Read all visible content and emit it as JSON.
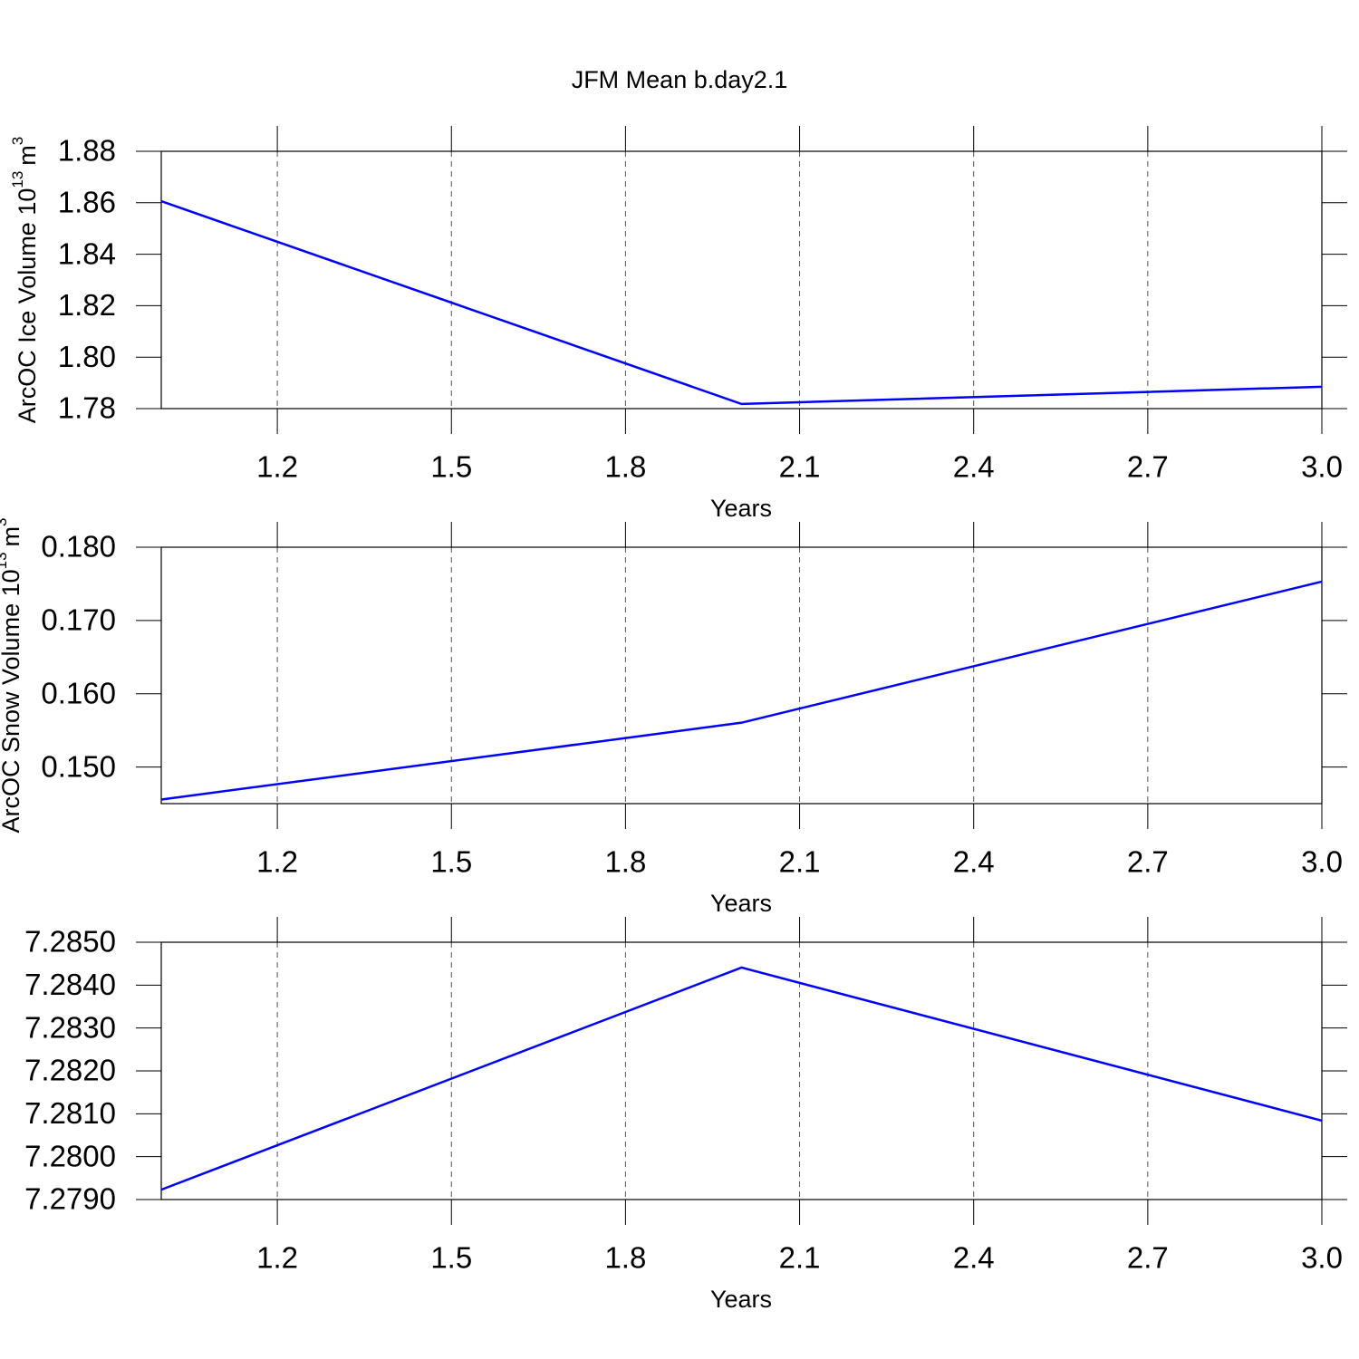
{
  "chart_data": [
    {
      "type": "line",
      "title": "JFM Mean b.day2.1",
      "xlabel": "Years",
      "ylabel": "ArcOC Ice Volume 10",
      "ylabel_exp": "13",
      "ylabel_unit": "m",
      "ylabel_unit_exp": "3",
      "x": [
        1,
        2,
        3
      ],
      "values": [
        1.8606,
        1.7818,
        1.7885
      ],
      "color": "#0000ff",
      "xlim": [
        1,
        3
      ],
      "xticks": [
        1.2,
        1.5,
        1.8,
        2.1,
        2.4,
        2.7,
        {
          "value": 3.0,
          "label": "3.0"
        }
      ],
      "ylim": [
        1.78,
        1.88
      ],
      "yticks": [
        1.78,
        {
          "value": 1.8,
          "label": "1.80"
        },
        1.82,
        1.84,
        1.86,
        1.88
      ],
      "grid": true
    },
    {
      "type": "line",
      "xlabel": "Years",
      "ylabel": "ArcOC Snow Volume 10",
      "ylabel_exp": "13",
      "ylabel_unit": "m",
      "ylabel_unit_exp": "3",
      "x": [
        1,
        2,
        3
      ],
      "values": [
        0.14556,
        0.15605,
        0.17531
      ],
      "color": "#0000ff",
      "xlim": [
        1,
        3
      ],
      "xticks": [
        1.2,
        1.5,
        1.8,
        2.1,
        2.4,
        2.7,
        {
          "value": 3.0,
          "label": "3.0"
        }
      ],
      "ylim": [
        0.145,
        0.18
      ],
      "yticks": [
        {
          "value": 0.15,
          "label": "0.150"
        },
        {
          "value": 0.16,
          "label": "0.160"
        },
        {
          "value": 0.17,
          "label": "0.170"
        },
        {
          "value": 0.18,
          "label": "0.180"
        }
      ],
      "grid": true
    },
    {
      "type": "line",
      "xlabel": "Years",
      "x": [
        1,
        2,
        3
      ],
      "values": [
        7.27923,
        7.28441,
        7.28084
      ],
      "color": "#0000ff",
      "xlim": [
        1,
        3
      ],
      "xticks": [
        1.2,
        1.5,
        1.8,
        2.1,
        2.4,
        2.7,
        {
          "value": 3.0,
          "label": "3.0"
        }
      ],
      "ylim": [
        7.279,
        7.285
      ],
      "yticks": [
        {
          "value": 7.279,
          "label": "7.2790"
        },
        {
          "value": 7.28,
          "label": "7.2800"
        },
        {
          "value": 7.281,
          "label": "7.2810"
        },
        {
          "value": 7.282,
          "label": "7.2820"
        },
        {
          "value": 7.283,
          "label": "7.2830"
        },
        {
          "value": 7.284,
          "label": "7.2840"
        },
        {
          "value": 7.285,
          "label": "7.2850"
        }
      ],
      "grid": true
    }
  ]
}
